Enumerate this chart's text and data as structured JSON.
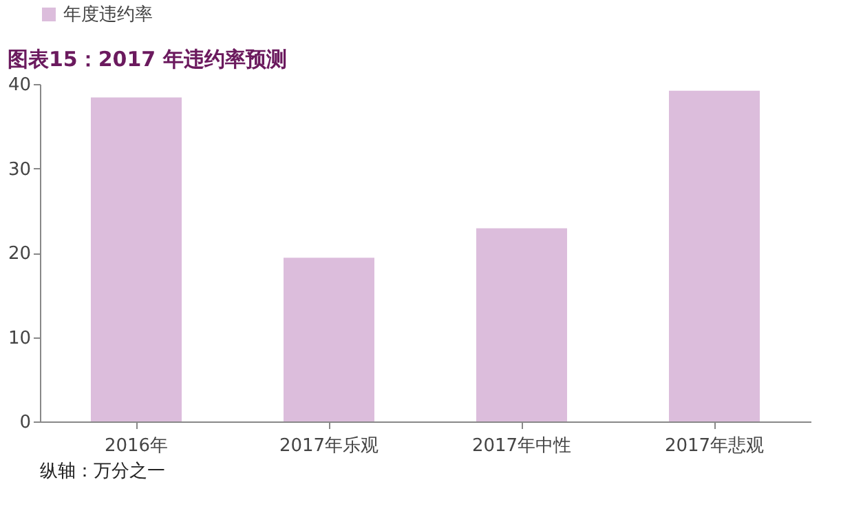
{
  "chart_data": {
    "type": "bar",
    "title": "图表15：2017 年违约率预测",
    "categories": [
      "2016年",
      "2017年乐观",
      "2017年中性",
      "2017年悲观"
    ],
    "series": [
      {
        "name": "年度违约率",
        "color": "#dcbddc",
        "values": [
          38.4,
          19.4,
          22.9,
          39.2
        ]
      }
    ],
    "ylim": [
      0,
      40
    ],
    "yticks": [
      0,
      10,
      20,
      30,
      40
    ],
    "grid": false,
    "legend": "top",
    "annotations": [
      "纵轴：万分之一"
    ]
  }
}
